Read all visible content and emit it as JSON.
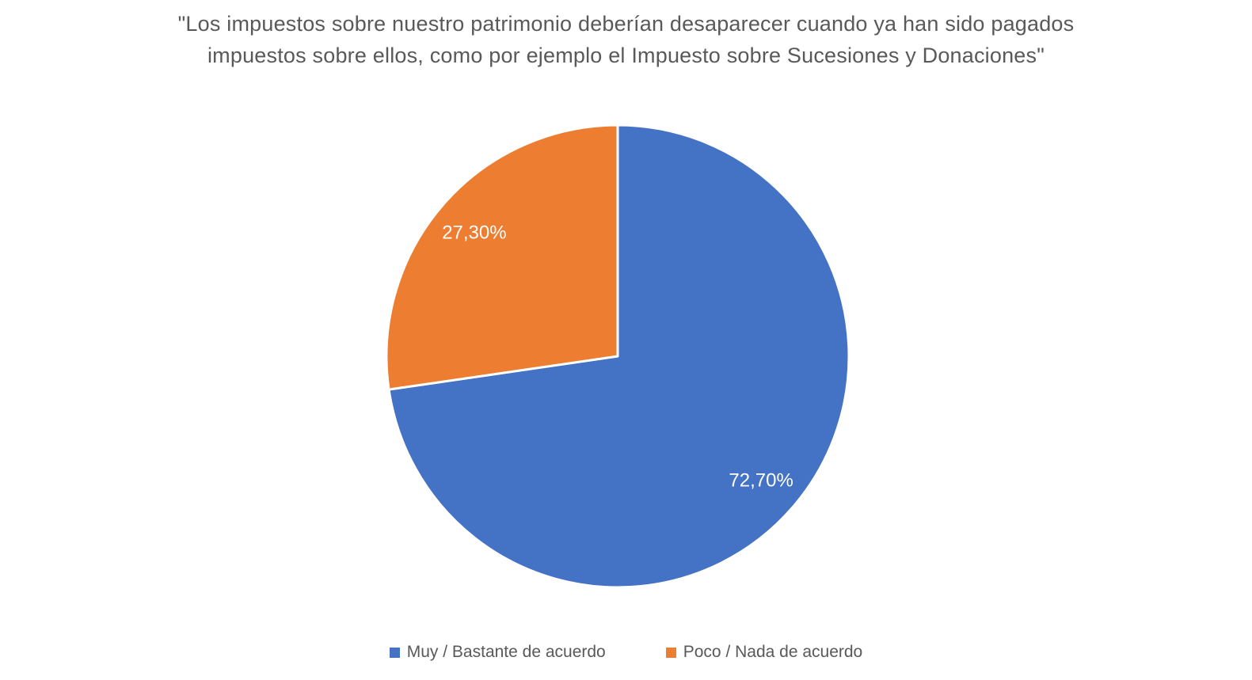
{
  "chart_data": {
    "type": "pie",
    "title": "\"Los impuestos sobre nuestro patrimonio deberían desaparecer cuando ya han sido pagados impuestos sobre ellos, como por ejemplo el Impuesto sobre Sucesiones y Donaciones\"",
    "title_lines": [
      "\"Los impuestos sobre nuestro patrimonio deberían desaparecer cuando ya han sido pagados",
      "impuestos sobre ellos, como por ejemplo el Impuesto sobre Sucesiones y Donaciones\""
    ],
    "slices": [
      {
        "label": "Muy / Bastante de acuerdo",
        "value": 72.7,
        "display": "72,70%",
        "color": "#4472C4"
      },
      {
        "label": "Poco / Nada de acuerdo",
        "value": 27.3,
        "display": "27,30%",
        "color": "#ED7D31"
      }
    ],
    "start_angle_deg": 0,
    "direction": "clockwise",
    "data_labels": "inside",
    "data_label_color": "#FFFFFF",
    "legend_position": "bottom"
  },
  "colors": {
    "background": "#FFFFFF",
    "title_text": "#595959",
    "legend_text": "#595959",
    "slice_separator": "#FFFFFF"
  }
}
